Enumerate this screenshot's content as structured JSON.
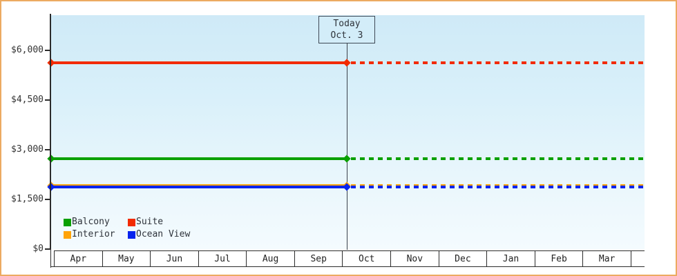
{
  "chart_data": {
    "type": "line",
    "title": "",
    "xlabel": "",
    "ylabel": "",
    "categories": [
      "Apr",
      "May",
      "Jun",
      "Jul",
      "Aug",
      "Sep",
      "Oct",
      "Nov",
      "Dec",
      "Jan",
      "Feb",
      "Mar"
    ],
    "series": [
      {
        "name": "Interior",
        "color": "#ffa408",
        "value": 1920,
        "values": [
          1920,
          1920,
          1920,
          1920,
          1920,
          1920,
          1920,
          1920,
          1920,
          1920,
          1920,
          1920
        ]
      },
      {
        "name": "Ocean View",
        "color": "#0724ee",
        "value": 1880,
        "values": [
          1880,
          1880,
          1880,
          1880,
          1880,
          1880,
          1880,
          1880,
          1880,
          1880,
          1880,
          1880
        ]
      },
      {
        "name": "Balcony",
        "color": "#0aa000",
        "value": 2730,
        "values": [
          2730,
          2730,
          2730,
          2730,
          2730,
          2730,
          2730,
          2730,
          2730,
          2730,
          2730,
          2730
        ]
      },
      {
        "name": "Suite",
        "color": "#f22b00",
        "value": 5625,
        "values": [
          5625,
          5625,
          5625,
          5625,
          5625,
          5625,
          5625,
          5625,
          5625,
          5625,
          5625,
          5625
        ]
      }
    ],
    "y_ticks": [
      {
        "label": "$0",
        "value": 0
      },
      {
        "label": "$1,500",
        "value": 1500
      },
      {
        "label": "$3,000",
        "value": 3000
      },
      {
        "label": "$4,500",
        "value": 4500
      },
      {
        "label": "$6,000",
        "value": 6000
      }
    ],
    "ylim": [
      0,
      7060
    ],
    "grid": "off",
    "annotation": {
      "line1": "Today",
      "line2": "Oct. 3",
      "month": "Oct",
      "day": 3
    },
    "style_note": "lines solid before today marker, dotted after; diamond markers at series start and at today line",
    "legend": {
      "position": "bottom-left",
      "items": [
        {
          "label": "Balcony",
          "color": "#0aa000"
        },
        {
          "label": "Suite",
          "color": "#f22b00"
        },
        {
          "label": "Interior",
          "color": "#ffa408"
        },
        {
          "label": "Ocean View",
          "color": "#0724ee"
        }
      ]
    },
    "colors": {
      "frame_border": "#ecaa61",
      "plot_bg_top": "#cfeaf7",
      "plot_bg_bottom": "#f4fbfe",
      "axis": "#2b2b2b",
      "today_line": "#3a4049",
      "today_box_bg": "#d3edf9"
    }
  }
}
